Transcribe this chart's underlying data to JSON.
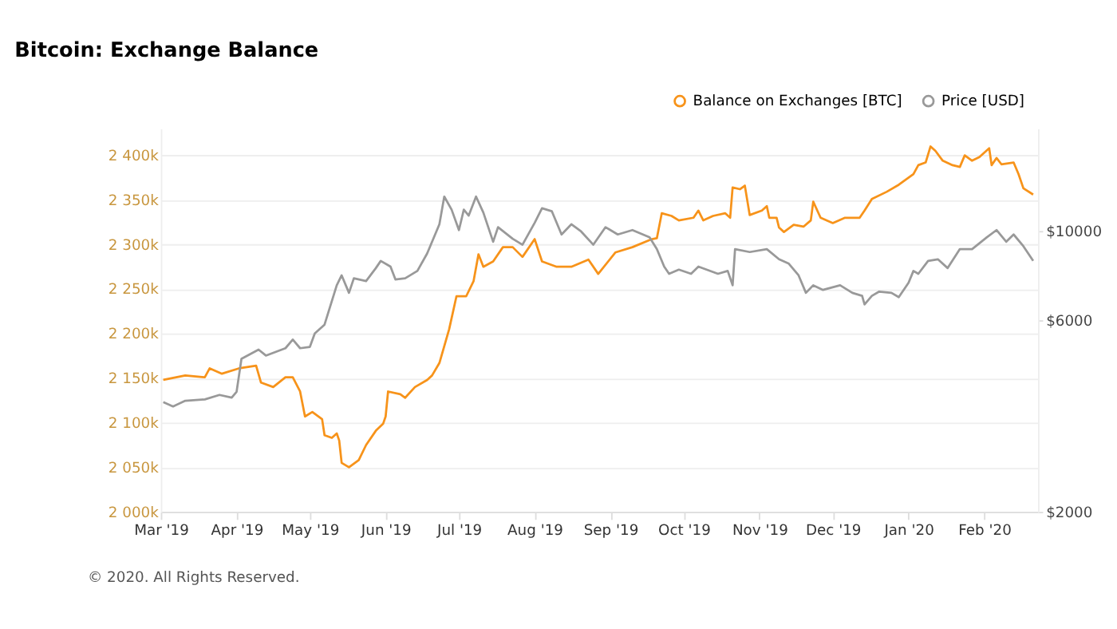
{
  "chart_data": {
    "type": "line",
    "title": "Bitcoin: Exchange Balance",
    "series": [
      {
        "name": "Balance on Exchanges [BTC]",
        "color": "#f7931a",
        "x": [
          "2019-03-02",
          "2019-03-11",
          "2019-03-19",
          "2019-03-21",
          "2019-03-26",
          "2019-04-02",
          "2019-04-09",
          "2019-04-11",
          "2019-04-16",
          "2019-04-21",
          "2019-04-24",
          "2019-04-27",
          "2019-04-29",
          "2019-05-02",
          "2019-05-06",
          "2019-05-07",
          "2019-05-10",
          "2019-05-12",
          "2019-05-13",
          "2019-05-14",
          "2019-05-17",
          "2019-05-21",
          "2019-05-24",
          "2019-05-28",
          "2019-05-31",
          "2019-06-01",
          "2019-06-02",
          "2019-06-07",
          "2019-06-09",
          "2019-06-13",
          "2019-06-18",
          "2019-06-20",
          "2019-06-23",
          "2019-06-27",
          "2019-06-30",
          "2019-07-04",
          "2019-07-07",
          "2019-07-09",
          "2019-07-11",
          "2019-07-15",
          "2019-07-19",
          "2019-07-23",
          "2019-07-27",
          "2019-08-01",
          "2019-08-04",
          "2019-08-10",
          "2019-08-16",
          "2019-08-23",
          "2019-08-27",
          "2019-09-03",
          "2019-09-10",
          "2019-09-18",
          "2019-09-20",
          "2019-09-22",
          "2019-09-26",
          "2019-09-29",
          "2019-10-05",
          "2019-10-07",
          "2019-10-09",
          "2019-10-13",
          "2019-10-18",
          "2019-10-20",
          "2019-10-21",
          "2019-10-24",
          "2019-10-26",
          "2019-10-28",
          "2019-11-02",
          "2019-11-04",
          "2019-11-05",
          "2019-11-08",
          "2019-11-09",
          "2019-11-11",
          "2019-11-15",
          "2019-11-19",
          "2019-11-22",
          "2019-11-23",
          "2019-11-26",
          "2019-12-01",
          "2019-12-06",
          "2019-12-12",
          "2019-12-14",
          "2019-12-17",
          "2019-12-23",
          "2019-12-28",
          "2020-01-03",
          "2020-01-05",
          "2020-01-08",
          "2020-01-10",
          "2020-01-12",
          "2020-01-15",
          "2020-01-19",
          "2020-01-22",
          "2020-01-24",
          "2020-01-27",
          "2020-01-30",
          "2020-02-03",
          "2020-02-04",
          "2020-02-06",
          "2020-02-08",
          "2020-02-13",
          "2020-02-15",
          "2020-02-17",
          "2020-02-21"
        ],
        "values": [
          2148000,
          2153000,
          2151000,
          2161000,
          2155000,
          2161000,
          2164000,
          2145000,
          2140000,
          2151000,
          2151000,
          2135000,
          2107000,
          2112000,
          2104000,
          2086000,
          2083000,
          2088000,
          2080000,
          2055000,
          2050000,
          2058000,
          2075000,
          2091000,
          2099000,
          2107000,
          2135000,
          2132000,
          2128000,
          2140000,
          2148000,
          2153000,
          2167000,
          2205000,
          2242000,
          2242000,
          2259000,
          2289000,
          2275000,
          2281000,
          2297000,
          2297000,
          2286000,
          2306000,
          2281000,
          2275000,
          2275000,
          2283000,
          2267000,
          2291000,
          2297000,
          2306000,
          2307000,
          2335000,
          2332000,
          2327000,
          2330000,
          2338000,
          2327000,
          2332000,
          2335000,
          2330000,
          2364000,
          2362000,
          2366000,
          2333000,
          2338000,
          2343000,
          2330000,
          2330000,
          2319000,
          2314000,
          2322000,
          2320000,
          2327000,
          2348000,
          2330000,
          2324000,
          2330000,
          2330000,
          2338000,
          2351000,
          2359000,
          2367000,
          2379000,
          2389000,
          2392000,
          2410000,
          2405000,
          2394000,
          2389000,
          2387000,
          2400000,
          2394000,
          2398000,
          2408000,
          2389000,
          2397000,
          2390000,
          2392000,
          2379000,
          2363000,
          2356000
        ]
      },
      {
        "name": "Price [USD]",
        "color": "#999999",
        "axis": "y2",
        "x": [
          "2019-03-02",
          "2019-03-06",
          "2019-03-11",
          "2019-03-19",
          "2019-03-25",
          "2019-03-30",
          "2019-04-01",
          "2019-04-03",
          "2019-04-10",
          "2019-04-13",
          "2019-04-21",
          "2019-04-24",
          "2019-04-27",
          "2019-05-01",
          "2019-05-03",
          "2019-05-07",
          "2019-05-12",
          "2019-05-14",
          "2019-05-17",
          "2019-05-19",
          "2019-05-24",
          "2019-05-28",
          "2019-05-30",
          "2019-06-03",
          "2019-06-05",
          "2019-06-09",
          "2019-06-14",
          "2019-06-18",
          "2019-06-23",
          "2019-06-25",
          "2019-06-28",
          "2019-07-01",
          "2019-07-03",
          "2019-07-05",
          "2019-07-08",
          "2019-07-11",
          "2019-07-15",
          "2019-07-17",
          "2019-07-23",
          "2019-07-27",
          "2019-08-01",
          "2019-08-04",
          "2019-08-08",
          "2019-08-12",
          "2019-08-16",
          "2019-08-20",
          "2019-08-25",
          "2019-08-30",
          "2019-09-04",
          "2019-09-10",
          "2019-09-17",
          "2019-09-20",
          "2019-09-23",
          "2019-09-25",
          "2019-09-29",
          "2019-10-04",
          "2019-10-07",
          "2019-10-15",
          "2019-10-19",
          "2019-10-21",
          "2019-10-22",
          "2019-10-28",
          "2019-11-04",
          "2019-11-09",
          "2019-11-13",
          "2019-11-17",
          "2019-11-20",
          "2019-11-23",
          "2019-11-27",
          "2019-12-04",
          "2019-12-09",
          "2019-12-13",
          "2019-12-14",
          "2019-12-17",
          "2019-12-20",
          "2019-12-25",
          "2019-12-28",
          "2020-01-01",
          "2020-01-03",
          "2020-01-05",
          "2020-01-09",
          "2020-01-13",
          "2020-01-17",
          "2020-01-22",
          "2020-01-27",
          "2020-02-02",
          "2020-02-06",
          "2020-02-10",
          "2020-02-13",
          "2020-02-17",
          "2020-02-21"
        ],
        "values": [
          3750,
          3660,
          3780,
          3810,
          3910,
          3850,
          3980,
          4810,
          5070,
          4900,
          5110,
          5370,
          5110,
          5150,
          5560,
          5850,
          7330,
          7760,
          7020,
          7630,
          7510,
          8090,
          8430,
          8160,
          7580,
          7630,
          7960,
          8800,
          10400,
          12190,
          11310,
          10060,
          11310,
          10930,
          12190,
          11120,
          9410,
          10230,
          9570,
          9250,
          10490,
          11400,
          11210,
          9810,
          10400,
          9980,
          9250,
          10230,
          9810,
          10060,
          9650,
          9020,
          8160,
          7830,
          8020,
          7830,
          8160,
          7830,
          7960,
          7330,
          9020,
          8870,
          9020,
          8510,
          8300,
          7760,
          7020,
          7330,
          7140,
          7330,
          7020,
          6900,
          6570,
          6900,
          7070,
          7020,
          6850,
          7440,
          7960,
          7830,
          8430,
          8510,
          8090,
          9020,
          9020,
          9650,
          10060,
          9410,
          9810,
          9170,
          8430
        ]
      }
    ],
    "xlim": [
      "2019-03-01",
      "2020-02-23"
    ],
    "xticks": [
      {
        "value": "2019-03-01",
        "label": "Mar '19"
      },
      {
        "value": "2019-04-01",
        "label": "Apr '19"
      },
      {
        "value": "2019-05-01",
        "label": "May '19"
      },
      {
        "value": "2019-06-01",
        "label": "Jun '19"
      },
      {
        "value": "2019-07-01",
        "label": "Jul '19"
      },
      {
        "value": "2019-08-01",
        "label": "Aug '19"
      },
      {
        "value": "2019-09-01",
        "label": "Sep '19"
      },
      {
        "value": "2019-10-01",
        "label": "Oct '19"
      },
      {
        "value": "2019-11-01",
        "label": "Nov '19"
      },
      {
        "value": "2019-12-01",
        "label": "Dec '19"
      },
      {
        "value": "2020-01-01",
        "label": "Jan '20"
      },
      {
        "value": "2020-02-01",
        "label": "Feb '20"
      }
    ],
    "ylim": [
      2000000,
      2430000
    ],
    "yticks": [
      {
        "value": 2000000,
        "label": "2 000k"
      },
      {
        "value": 2050000,
        "label": "2 050k"
      },
      {
        "value": 2100000,
        "label": "2 100k"
      },
      {
        "value": 2150000,
        "label": "2 150k"
      },
      {
        "value": 2200000,
        "label": "2 200k"
      },
      {
        "value": 2250000,
        "label": "2 250k"
      },
      {
        "value": 2300000,
        "label": "2 300k"
      },
      {
        "value": 2350000,
        "label": "2 350k"
      },
      {
        "value": 2400000,
        "label": "2 400k"
      }
    ],
    "y2lim": [
      2000,
      18000
    ],
    "y2ticks": [
      {
        "value": 2000,
        "label": "$2000"
      },
      {
        "value": 6000,
        "label": "$6000"
      },
      {
        "value": 10000,
        "label": "$10000"
      }
    ],
    "log": "y2",
    "grid": "y",
    "legend": "top right",
    "marker": "none",
    "line_style": "solid",
    "annotations": [
      "© 2020. All Rights Reserved."
    ]
  }
}
